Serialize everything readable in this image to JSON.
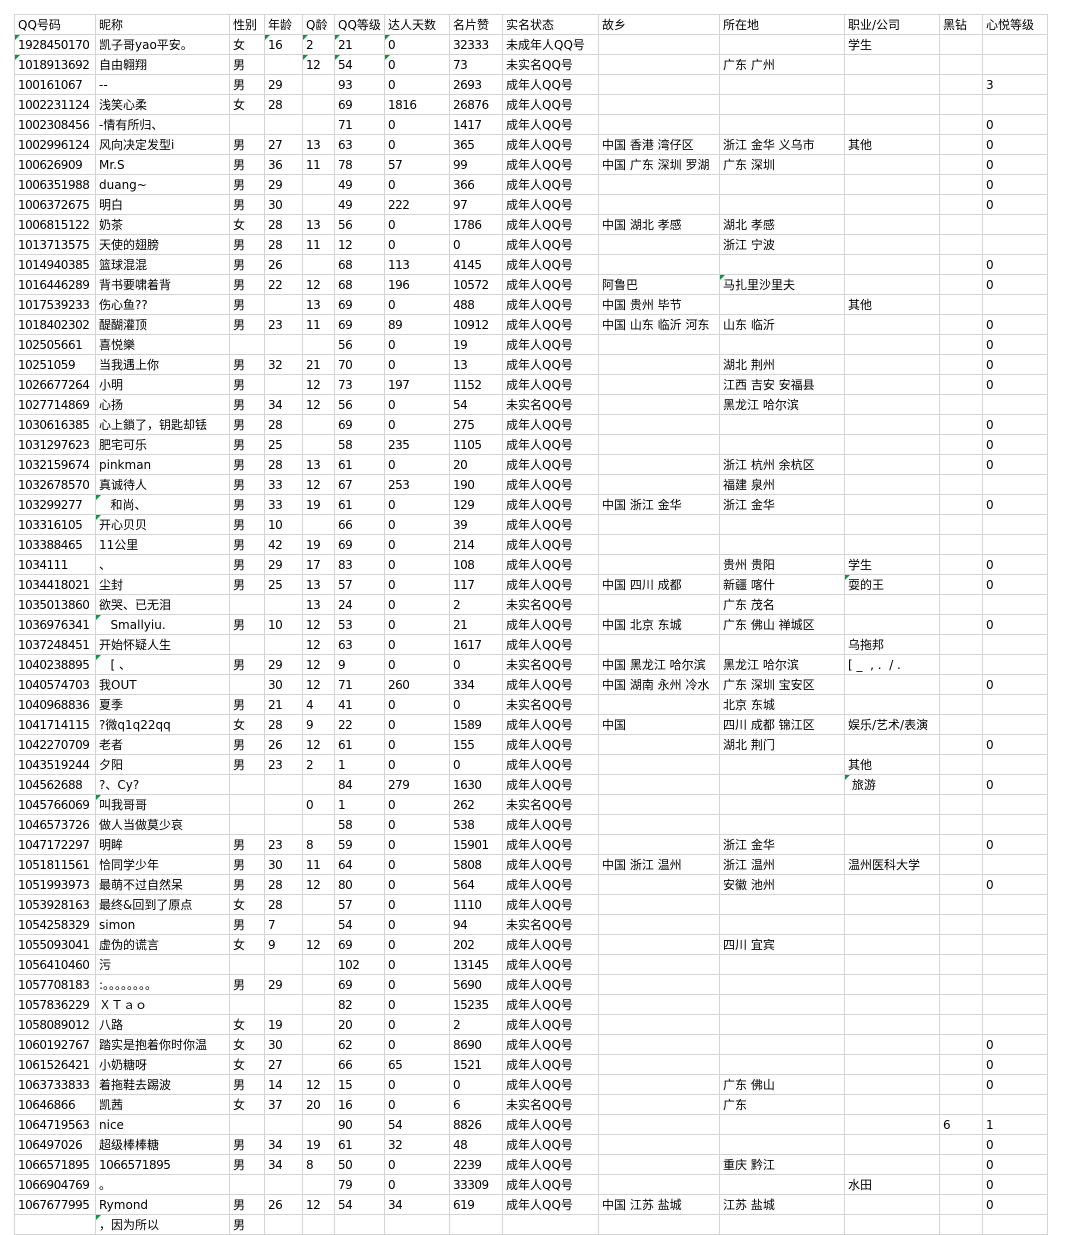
{
  "sheet": {
    "columns": [
      "QQ号码",
      "昵称",
      "性别",
      "年龄",
      "Q龄",
      "QQ等级",
      "达人天数",
      "名片赞",
      "实名状态",
      "故乡",
      "所在地",
      "职业/公司",
      "黑钻",
      "心悦等级"
    ],
    "rows": [
      {
        "c": [
          "1928450170",
          "凯子哥yao平安。",
          "女",
          "16",
          "2",
          "21",
          "0",
          "32333",
          "未成年人QQ号",
          "",
          "",
          "学生",
          "",
          ""
        ],
        "m": [
          0,
          3,
          4,
          5,
          6
        ]
      },
      {
        "c": [
          "1018913692",
          "自由翱翔",
          "男",
          "",
          "12",
          "54",
          "0",
          "73",
          "未实名QQ号",
          "",
          "广东 广州",
          "",
          "",
          ""
        ],
        "m": [
          0,
          4,
          5,
          6
        ]
      },
      {
        "c": [
          "100161067",
          "--",
          "男",
          "29",
          "",
          "93",
          "0",
          "2693",
          "成年人QQ号",
          "",
          "",
          "",
          "",
          "3"
        ],
        "m": []
      },
      {
        "c": [
          "1002231124",
          "浅笑心柔",
          "女",
          "28",
          "",
          "69",
          "1816",
          "26876",
          "成年人QQ号",
          "",
          "",
          "",
          "",
          ""
        ],
        "m": []
      },
      {
        "c": [
          "1002308456",
          "-情有所归、",
          "",
          "",
          "",
          "71",
          "0",
          "1417",
          "成年人QQ号",
          "",
          "",
          "",
          "",
          "0"
        ],
        "m": []
      },
      {
        "c": [
          "1002996124",
          "风向决定发型i",
          "男",
          "27",
          "13",
          "63",
          "0",
          "365",
          "成年人QQ号",
          "中国 香港 湾仔区",
          "浙江 金华 义乌市",
          "其他",
          "",
          "0"
        ],
        "m": []
      },
      {
        "c": [
          "100626909",
          "Mr.S",
          "男",
          "36",
          "11",
          "78",
          "57",
          "99",
          "成年人QQ号",
          "中国 广东 深圳 罗湖",
          "广东 深圳",
          "",
          "",
          "0"
        ],
        "m": []
      },
      {
        "c": [
          "1006351988",
          "duang~",
          "男",
          "29",
          "",
          "49",
          "0",
          "366",
          "成年人QQ号",
          "",
          "",
          "",
          "",
          "0"
        ],
        "m": []
      },
      {
        "c": [
          "1006372675",
          "明白",
          "男",
          "30",
          "",
          "49",
          "222",
          "97",
          "成年人QQ号",
          "",
          "",
          "",
          "",
          "0"
        ],
        "m": []
      },
      {
        "c": [
          "1006815122",
          "奶茶",
          "女",
          "28",
          "13",
          "56",
          "0",
          "1786",
          "成年人QQ号",
          "中国 湖北 孝感",
          "湖北 孝感",
          "",
          "",
          ""
        ],
        "m": []
      },
      {
        "c": [
          "1013713575",
          "天使的翅膀",
          "男",
          "28",
          "11",
          "12",
          "0",
          "0",
          "成年人QQ号",
          "",
          "浙江 宁波",
          "",
          "",
          ""
        ],
        "m": []
      },
      {
        "c": [
          "1014940385",
          "篮球混混",
          "男",
          "26",
          "",
          "68",
          "113",
          "4145",
          "成年人QQ号",
          "",
          "",
          "",
          "",
          "0"
        ],
        "m": []
      },
      {
        "c": [
          "1016446289",
          "背书要啸着背",
          "男",
          "22",
          "12",
          "68",
          "196",
          "10572",
          "成年人QQ号",
          "阿鲁巴",
          "马扎里沙里夫",
          "",
          "",
          "0"
        ],
        "m": [
          10
        ]
      },
      {
        "c": [
          "1017539233",
          "伤心鱼??",
          "男",
          "",
          "13",
          "69",
          "0",
          "488",
          "成年人QQ号",
          "中国 贵州 毕节",
          "",
          "其他",
          "",
          ""
        ],
        "m": []
      },
      {
        "c": [
          "1018402302",
          "醍醐灌顶",
          "男",
          "23",
          "11",
          "69",
          "89",
          "10912",
          "成年人QQ号",
          "中国 山东 临沂 河东",
          "山东 临沂",
          "",
          "",
          "0"
        ],
        "m": []
      },
      {
        "c": [
          "102505661",
          "喜悦樂",
          "",
          "",
          "",
          "56",
          "0",
          "19",
          "成年人QQ号",
          "",
          "",
          "",
          "",
          "0"
        ],
        "m": []
      },
      {
        "c": [
          "10251059",
          "当我遇上你",
          "男",
          "32",
          "21",
          "70",
          "0",
          "13",
          "成年人QQ号",
          "",
          "湖北 荆州",
          "",
          "",
          "0"
        ],
        "m": []
      },
      {
        "c": [
          "1026677264",
          "小明",
          "男",
          "",
          "12",
          "73",
          "197",
          "1152",
          "成年人QQ号",
          "",
          "江西 吉安 安福县",
          "",
          "",
          "0"
        ],
        "m": []
      },
      {
        "c": [
          "1027714869",
          "心扬",
          "男",
          "34",
          "12",
          "56",
          "0",
          "54",
          "未实名QQ号",
          "",
          "黑龙江 哈尔滨",
          "",
          "",
          ""
        ],
        "m": []
      },
      {
        "c": [
          "1030616385",
          "心上鎖了，钥匙却铥",
          "男",
          "28",
          "",
          "69",
          "0",
          "275",
          "成年人QQ号",
          "",
          "",
          "",
          "",
          "0"
        ],
        "m": []
      },
      {
        "c": [
          "1031297623",
          "肥宅可乐",
          "男",
          "25",
          "",
          "58",
          "235",
          "1105",
          "成年人QQ号",
          "",
          "",
          "",
          "",
          "0"
        ],
        "m": []
      },
      {
        "c": [
          "1032159674",
          "pinkman",
          "男",
          "28",
          "13",
          "61",
          "0",
          "20",
          "成年人QQ号",
          "",
          "浙江 杭州 余杭区",
          "",
          "",
          "0"
        ],
        "m": []
      },
      {
        "c": [
          "1032678570",
          "真诚待人",
          "男",
          "33",
          "12",
          "67",
          "253",
          "190",
          "成年人QQ号",
          "",
          "福建 泉州",
          "",
          "",
          ""
        ],
        "m": []
      },
      {
        "c": [
          "103299277",
          "   和尚、",
          "男",
          "33",
          "19",
          "61",
          "0",
          "129",
          "成年人QQ号",
          "中国 浙江 金华",
          "浙江 金华",
          "",
          "",
          "0"
        ],
        "m": [
          1
        ]
      },
      {
        "c": [
          "103316105",
          "开心贝贝",
          "男",
          "10",
          "",
          "66",
          "0",
          "39",
          "成年人QQ号",
          "",
          "",
          "",
          "",
          ""
        ],
        "m": [
          1
        ]
      },
      {
        "c": [
          "103388465",
          "11公里",
          "男",
          "42",
          "19",
          "69",
          "0",
          "214",
          "成年人QQ号",
          "",
          "",
          "",
          "",
          ""
        ],
        "m": []
      },
      {
        "c": [
          "1034111",
          "、",
          "男",
          "29",
          "17",
          "83",
          "0",
          "108",
          "成年人QQ号",
          "",
          "贵州 贵阳",
          "学生",
          "",
          "0"
        ],
        "m": []
      },
      {
        "c": [
          "1034418021",
          "尘封",
          "男",
          "25",
          "13",
          "57",
          "0",
          "117",
          "成年人QQ号",
          "中国 四川 成都",
          "新疆 喀什",
          "耍的王",
          "",
          "0"
        ],
        "m": [
          11
        ]
      },
      {
        "c": [
          "1035013860",
          "欲哭、已无泪",
          "",
          "",
          "13",
          "24",
          "0",
          "2",
          "未实名QQ号",
          "",
          "广东 茂名",
          "",
          "",
          ""
        ],
        "m": []
      },
      {
        "c": [
          "1036976341",
          "   Smallyiu.",
          "男",
          "10",
          "12",
          "53",
          "0",
          "21",
          "成年人QQ号",
          "中国 北京 东城",
          "广东 佛山 禅城区",
          "",
          "",
          "0"
        ],
        "m": [
          1
        ]
      },
      {
        "c": [
          "1037248451",
          "开始怀疑人生",
          "",
          "",
          "12",
          "63",
          "0",
          "1617",
          "成年人QQ号",
          "",
          "",
          "乌拖邦",
          "",
          ""
        ],
        "m": []
      },
      {
        "c": [
          "1040238895",
          "   [ 、",
          "男",
          "29",
          "12",
          "9",
          "0",
          "0",
          "未实名QQ号",
          "中国 黑龙江 哈尔滨",
          "黑龙江 哈尔滨",
          "[ _  , .  / .",
          "",
          ""
        ],
        "m": [
          1
        ]
      },
      {
        "c": [
          "1040574703",
          "我OUT",
          "",
          "30",
          "12",
          "71",
          "260",
          "334",
          "成年人QQ号",
          "中国 湖南 永州 冷水",
          "广东 深圳 宝安区",
          "",
          "",
          "0"
        ],
        "m": []
      },
      {
        "c": [
          "1040968836",
          "夏季",
          "男",
          "21",
          "4",
          "41",
          "0",
          "0",
          "未实名QQ号",
          "",
          "北京 东城",
          "",
          "",
          ""
        ],
        "m": []
      },
      {
        "c": [
          "1041714115",
          "?微q1q22qq",
          "女",
          "28",
          "9",
          "22",
          "0",
          "1589",
          "成年人QQ号",
          "中国",
          "四川 成都 锦江区",
          "娱乐/艺术/表演",
          "",
          ""
        ],
        "m": []
      },
      {
        "c": [
          "1042270709",
          "老者",
          "男",
          "26",
          "12",
          "61",
          "0",
          "155",
          "成年人QQ号",
          "",
          "湖北 荆门",
          "",
          "",
          "0"
        ],
        "m": []
      },
      {
        "c": [
          "1043519244",
          "夕阳",
          "男",
          "23",
          "2",
          "1",
          "0",
          "0",
          "成年人QQ号",
          "",
          "",
          "其他",
          "",
          ""
        ],
        "m": []
      },
      {
        "c": [
          "104562688",
          "?、Cy?",
          "",
          "",
          "",
          "84",
          "279",
          "1630",
          "成年人QQ号",
          "",
          "",
          " 旅游",
          "",
          "0"
        ],
        "m": [
          11
        ]
      },
      {
        "c": [
          "1045766069",
          "叫我哥哥",
          "",
          "",
          "0",
          "1",
          "0",
          "262",
          "未实名QQ号",
          "",
          "",
          "",
          "",
          ""
        ],
        "m": [
          1
        ]
      },
      {
        "c": [
          "1046573726",
          "做人当做莫少哀",
          "",
          "",
          "",
          "58",
          "0",
          "538",
          "成年人QQ号",
          "",
          "",
          "",
          "",
          ""
        ],
        "m": []
      },
      {
        "c": [
          "1047172297",
          "明眸",
          "男",
          "23",
          "8",
          "59",
          "0",
          "15901",
          "成年人QQ号",
          "",
          "浙江 金华",
          "",
          "",
          "0"
        ],
        "m": []
      },
      {
        "c": [
          "1051811561",
          "恰同学少年",
          "男",
          "30",
          "11",
          "64",
          "0",
          "5808",
          "成年人QQ号",
          "中国 浙江 温州",
          "浙江 温州",
          "温州医科大学",
          "",
          ""
        ],
        "m": []
      },
      {
        "c": [
          "1051993973",
          "最萌不过自然呆",
          "男",
          "28",
          "12",
          "80",
          "0",
          "564",
          "成年人QQ号",
          "",
          "安徽 池州",
          "",
          "",
          "0"
        ],
        "m": []
      },
      {
        "c": [
          "1053928163",
          "最终&回到了原点",
          "女",
          "28",
          "",
          "57",
          "0",
          "1110",
          "成年人QQ号",
          "",
          "",
          "",
          "",
          ""
        ],
        "m": []
      },
      {
        "c": [
          "1054258329",
          "simon",
          "男",
          "7",
          "",
          "54",
          "0",
          "94",
          "未实名QQ号",
          "",
          "",
          "",
          "",
          ""
        ],
        "m": []
      },
      {
        "c": [
          "1055093041",
          "虚伪的谎言",
          "女",
          "9",
          "12",
          "69",
          "0",
          "202",
          "成年人QQ号",
          "",
          "四川 宜宾",
          "",
          "",
          ""
        ],
        "m": []
      },
      {
        "c": [
          "1056410460",
          "污",
          "",
          "",
          "",
          "102",
          "0",
          "13145",
          "成年人QQ号",
          "",
          "",
          "",
          "",
          ""
        ],
        "m": []
      },
      {
        "c": [
          "1057708183",
          ":。。。。。。。。",
          "男",
          "29",
          "",
          "69",
          "0",
          "5690",
          "成年人QQ号",
          "",
          "",
          "",
          "",
          ""
        ],
        "m": []
      },
      {
        "c": [
          "1057836229",
          "ＸＴａｏ",
          "",
          "",
          "",
          "82",
          "0",
          "15235",
          "成年人QQ号",
          "",
          "",
          "",
          "",
          ""
        ],
        "m": []
      },
      {
        "c": [
          "1058089012",
          "八路",
          "女",
          "19",
          "",
          "20",
          "0",
          "2",
          "成年人QQ号",
          "",
          "",
          "",
          "",
          ""
        ],
        "m": []
      },
      {
        "c": [
          "1060192767",
          "踏实是抱着你时你温",
          "女",
          "30",
          "",
          "62",
          "0",
          "8690",
          "成年人QQ号",
          "",
          "",
          "",
          "",
          "0"
        ],
        "m": []
      },
      {
        "c": [
          "1061526421",
          "小奶糖呀",
          "女",
          "27",
          "",
          "66",
          "65",
          "1521",
          "成年人QQ号",
          "",
          "",
          "",
          "",
          "0"
        ],
        "m": []
      },
      {
        "c": [
          "1063733833",
          "着拖鞋去踢波",
          "男",
          "14",
          "12",
          "15",
          "0",
          "0",
          "成年人QQ号",
          "",
          "广东 佛山",
          "",
          "",
          "0"
        ],
        "m": []
      },
      {
        "c": [
          "10646866",
          "凯茜",
          "女",
          "37",
          "20",
          "16",
          "0",
          "6",
          "未实名QQ号",
          "",
          "广东",
          "",
          "",
          ""
        ],
        "m": []
      },
      {
        "c": [
          "1064719563",
          "nice",
          "",
          "",
          "",
          "90",
          "54",
          "8826",
          "成年人QQ号",
          "",
          "",
          "",
          "6",
          "1"
        ],
        "m": []
      },
      {
        "c": [
          "106497026",
          "超级棒棒糖",
          "男",
          "34",
          "19",
          "61",
          "32",
          "48",
          "成年人QQ号",
          "",
          "",
          "",
          "",
          "0"
        ],
        "m": []
      },
      {
        "c": [
          "1066571895",
          "1066571895",
          "男",
          "34",
          "8",
          "50",
          "0",
          "2239",
          "成年人QQ号",
          "",
          "重庆 黔江",
          "",
          "",
          "0"
        ],
        "m": []
      },
      {
        "c": [
          "1066904769",
          "。",
          "",
          "",
          "",
          "79",
          "0",
          "33309",
          "成年人QQ号",
          "",
          "",
          "水田",
          "",
          "0"
        ],
        "m": []
      },
      {
        "c": [
          "1067677995",
          "Rymond",
          "男",
          "26",
          "12",
          "54",
          "34",
          "619",
          "成年人QQ号",
          "中国 江苏 盐城",
          "江苏 盐城",
          "",
          "",
          "0"
        ],
        "m": []
      },
      {
        "c": [
          "",
          "，因为所以",
          "男",
          "",
          "",
          "",
          "",
          "",
          "",
          "",
          "",
          "",
          "",
          ""
        ],
        "m": [
          1
        ]
      }
    ]
  },
  "colors": {
    "gridline": "#d4d4d4",
    "comment_indicator": "#0e9640",
    "text": "#000000"
  }
}
